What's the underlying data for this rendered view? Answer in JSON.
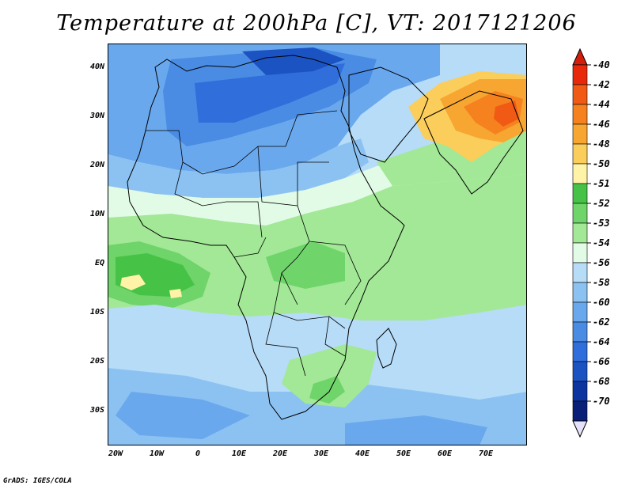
{
  "title": "Temperature at 200hPa [C], VT: 2017121206",
  "credit": "GrADS: IGES/COLA",
  "map": {
    "lat_labels": [
      "40N",
      "30N",
      "20N",
      "10N",
      "EQ",
      "10S",
      "20S",
      "30S"
    ],
    "lon_labels": [
      "20W",
      "10W",
      "0",
      "10E",
      "20E",
      "30E",
      "40E",
      "50E",
      "60E",
      "70E"
    ]
  },
  "colorbar": {
    "labels": [
      "-40",
      "-42",
      "-44",
      "-46",
      "-48",
      "-50",
      "-51",
      "-52",
      "-53",
      "-54",
      "-56",
      "-58",
      "-60",
      "-62",
      "-64",
      "-66",
      "-68",
      "-70"
    ],
    "colors": [
      "#e8280a",
      "#f05a14",
      "#f5821e",
      "#f8a632",
      "#fbcd5a",
      "#fff3a8",
      "#46c346",
      "#6fd46a",
      "#a2e896",
      "#e2fbe6",
      "#b6dcf8",
      "#8cc2f2",
      "#6aa8ee",
      "#4a8ce4",
      "#2f6edb",
      "#1c53c3",
      "#0c35a0",
      "#0a1f78"
    ],
    "over_arrow": "#d21e0a",
    "under_arrow": "#e6e1fa"
  }
}
